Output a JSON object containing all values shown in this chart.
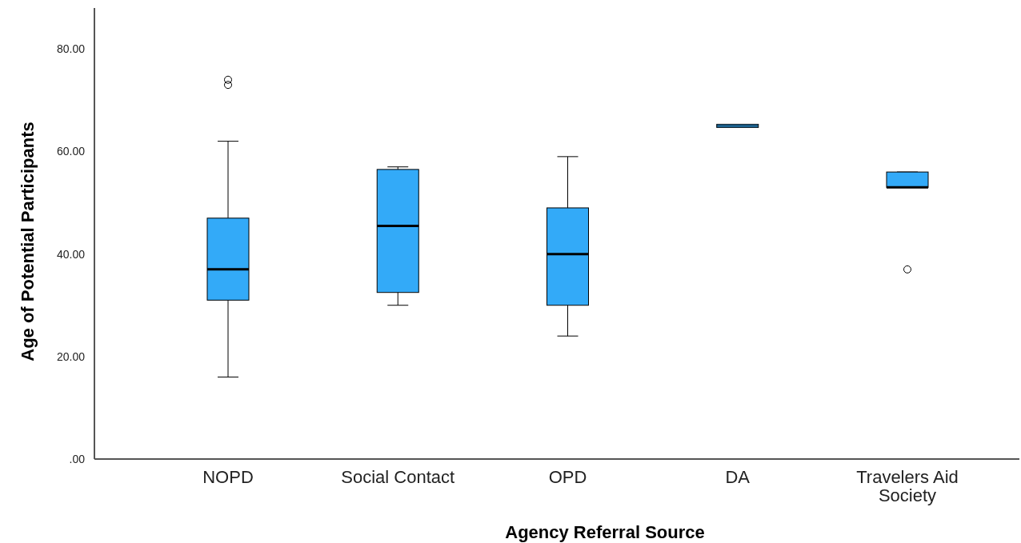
{
  "chart_data": {
    "type": "box",
    "xlabel": "Agency Referral Source",
    "ylabel": "Age of Potential Participants",
    "categories": [
      "NOPD",
      "Social Contact",
      "OPD",
      "DA",
      "Travelers Aid Society"
    ],
    "color": "#33aaf8",
    "boxes": [
      {
        "low": 16,
        "q1": 31,
        "median": 37,
        "q3": 47,
        "high": 62,
        "outliers": [
          74,
          73
        ]
      },
      {
        "low": 30,
        "q1": 32.5,
        "median": 45.5,
        "q3": 56.5,
        "high": 57
      },
      {
        "low": 24,
        "q1": 30,
        "median": 40,
        "q3": 49,
        "high": 59
      },
      {
        "low": 65,
        "q1": 65,
        "median": 65,
        "q3": 65,
        "high": 65
      },
      {
        "low": 53,
        "q1": 53,
        "median": 53,
        "q3": 56,
        "high": 56,
        "outliers": [
          37
        ]
      }
    ],
    "ylim": [
      0,
      88
    ],
    "yticks": [
      {
        "value": 0,
        "label": ".00"
      },
      {
        "value": 20,
        "label": "20.00"
      },
      {
        "value": 40,
        "label": "40.00"
      },
      {
        "value": 60,
        "label": "60.00"
      },
      {
        "value": 80,
        "label": "80.00"
      }
    ],
    "grid": false
  }
}
